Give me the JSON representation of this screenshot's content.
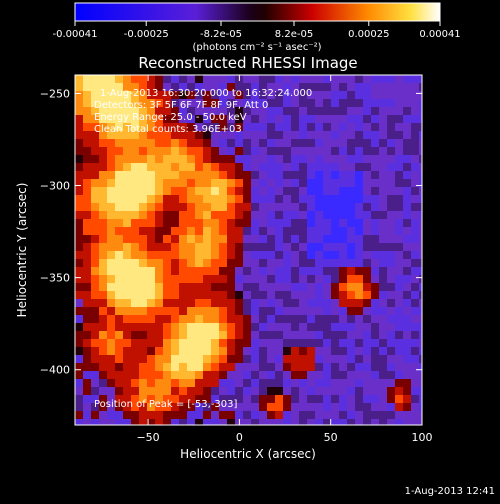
{
  "chart_data": {
    "type": "heatmap",
    "title": "Reconstructed RHESSI Image",
    "xlabel": "Heliocentric X (arcsec)",
    "ylabel": "Heliocentric Y (arcsec)",
    "xlim": [
      -90,
      100
    ],
    "ylim": [
      -430,
      -240
    ],
    "x_ticks": [
      -50,
      0,
      50,
      100
    ],
    "y_ticks": [
      -250,
      -300,
      -350,
      -400
    ],
    "colorbar": {
      "range": [
        -0.00041,
        0.00041
      ],
      "tick_values": [
        -0.00041,
        -0.00025,
        -8.2e-05,
        8.2e-05,
        0.00025,
        0.00041
      ],
      "tick_labels": [
        "-0.00041",
        "-0.00025",
        "-8.2e-05",
        "8.2e-05",
        "0.00025",
        "0.00041"
      ],
      "unit_label": "(photons cm⁻² s⁻¹ asec⁻²)"
    },
    "annotations": {
      "time_range": "1-Aug-2013 16:30:20.000 to 16:32:24.000",
      "detectors": "Detectors: 3F 5F 6F 7F 8F 9F, Att 0",
      "energy_range": "Energy Range: 25.0 - 50.0 keV",
      "clean_counts": "Clean     Total counts: 3.96E+03",
      "peak_position": "Position of Peak = [-53,-303]"
    },
    "footer_timestamp": "1-Aug-2013 12:41"
  }
}
